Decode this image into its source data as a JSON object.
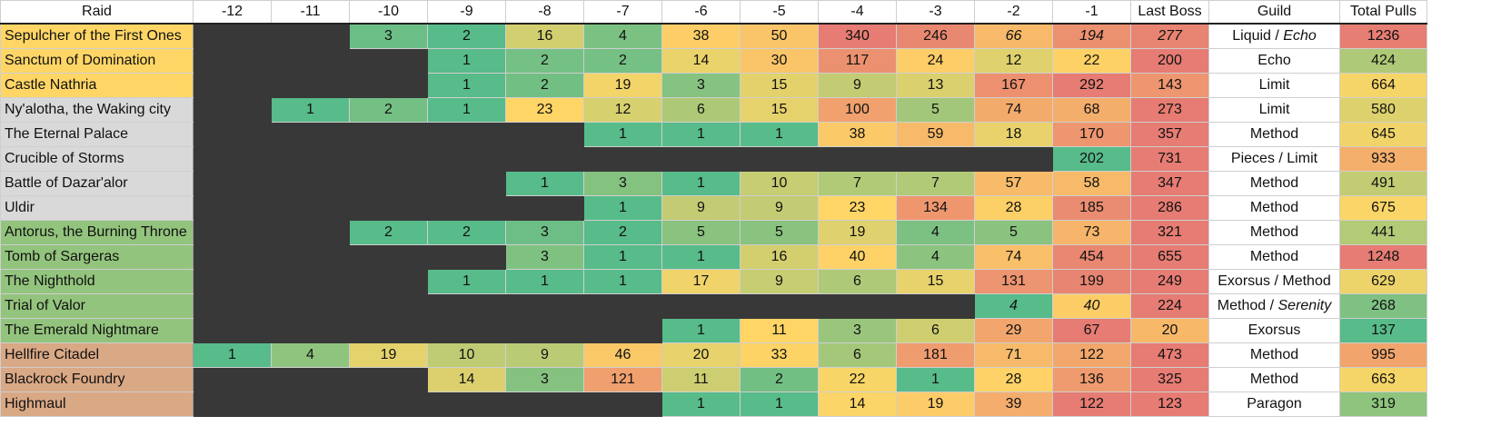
{
  "header": {
    "raid_label": "Raid",
    "columns": [
      "-12",
      "-11",
      "-10",
      "-9",
      "-8",
      "-7",
      "-6",
      "-5",
      "-4",
      "-3",
      "-2",
      "-1",
      "Last Boss"
    ],
    "guild_label": "Guild",
    "total_label": "Total Pulls"
  },
  "colors": {
    "empty": "#383838",
    "scale": [
      "#57bb8a",
      "#ffd666",
      "#e67c73"
    ],
    "raid_groups": {
      "shadowlands": "#ffd666",
      "bfa": "#d9d9d9",
      "legion": "#93c47d",
      "wod": "#d9a885"
    }
  },
  "rows": [
    {
      "name": "Sepulcher of the First Ones",
      "group": "shadowlands",
      "pulls": [
        null,
        null,
        "3",
        "2",
        "16",
        "4",
        "38",
        "50",
        "340",
        "246",
        "66",
        "194",
        "277"
      ],
      "italic": [
        10,
        11,
        12
      ],
      "guild": [
        {
          "t": "Liquid",
          "i": false
        },
        {
          "t": " / ",
          "i": false
        },
        {
          "t": "Echo",
          "i": true
        }
      ],
      "total": "1236"
    },
    {
      "name": "Sanctum of Domination",
      "group": "shadowlands",
      "pulls": [
        null,
        null,
        null,
        "1",
        "2",
        "2",
        "14",
        "30",
        "117",
        "24",
        "12",
        "22",
        "200"
      ],
      "italic": [],
      "guild": [
        {
          "t": "Echo",
          "i": false
        }
      ],
      "total": "424"
    },
    {
      "name": "Castle Nathria",
      "group": "shadowlands",
      "pulls": [
        null,
        null,
        null,
        "1",
        "2",
        "19",
        "3",
        "15",
        "9",
        "13",
        "167",
        "292",
        "143"
      ],
      "italic": [],
      "guild": [
        {
          "t": "Limit",
          "i": false
        }
      ],
      "total": "664"
    },
    {
      "name": "Ny'alotha, the Waking city",
      "group": "bfa",
      "pulls": [
        null,
        "1",
        "2",
        "1",
        "23",
        "12",
        "6",
        "15",
        "100",
        "5",
        "74",
        "68",
        "273"
      ],
      "italic": [],
      "guild": [
        {
          "t": "Limit",
          "i": false
        }
      ],
      "total": "580"
    },
    {
      "name": "The Eternal Palace",
      "group": "bfa",
      "pulls": [
        null,
        null,
        null,
        null,
        null,
        "1",
        "1",
        "1",
        "38",
        "59",
        "18",
        "170",
        "357"
      ],
      "italic": [],
      "guild": [
        {
          "t": "Method",
          "i": false
        }
      ],
      "total": "645"
    },
    {
      "name": "Crucible of Storms",
      "group": "bfa",
      "pulls": [
        null,
        null,
        null,
        null,
        null,
        null,
        null,
        null,
        null,
        null,
        null,
        "202",
        "731"
      ],
      "italic": [],
      "guild": [
        {
          "t": "Pieces / Limit",
          "i": false
        }
      ],
      "total": "933"
    },
    {
      "name": "Battle of Dazar'alor",
      "group": "bfa",
      "pulls": [
        null,
        null,
        null,
        null,
        "1",
        "3",
        "1",
        "10",
        "7",
        "7",
        "57",
        "58",
        "347"
      ],
      "italic": [],
      "guild": [
        {
          "t": "Method",
          "i": false
        }
      ],
      "total": "491"
    },
    {
      "name": "Uldir",
      "group": "bfa",
      "pulls": [
        null,
        null,
        null,
        null,
        null,
        "1",
        "9",
        "9",
        "23",
        "134",
        "28",
        "185",
        "286"
      ],
      "italic": [],
      "guild": [
        {
          "t": "Method",
          "i": false
        }
      ],
      "total": "675"
    },
    {
      "name": "Antorus, the Burning Throne",
      "group": "legion",
      "pulls": [
        null,
        null,
        "2",
        "2",
        "3",
        "2",
        "5",
        "5",
        "19",
        "4",
        "5",
        "73",
        "321"
      ],
      "italic": [],
      "guild": [
        {
          "t": "Method",
          "i": false
        }
      ],
      "total": "441"
    },
    {
      "name": "Tomb of Sargeras",
      "group": "legion",
      "pulls": [
        null,
        null,
        null,
        null,
        "3",
        "1",
        "1",
        "16",
        "40",
        "4",
        "74",
        "454",
        "655"
      ],
      "italic": [],
      "guild": [
        {
          "t": "Method",
          "i": false
        }
      ],
      "total": "1248"
    },
    {
      "name": "The Nighthold",
      "group": "legion",
      "pulls": [
        null,
        null,
        null,
        "1",
        "1",
        "1",
        "17",
        "9",
        "6",
        "15",
        "131",
        "199",
        "249"
      ],
      "italic": [],
      "guild": [
        {
          "t": "Exorsus / Method",
          "i": false
        }
      ],
      "total": "629"
    },
    {
      "name": "Trial of Valor",
      "group": "legion",
      "pulls": [
        null,
        null,
        null,
        null,
        null,
        null,
        null,
        null,
        null,
        null,
        "4",
        "40",
        "224"
      ],
      "italic": [
        10,
        11
      ],
      "guild": [
        {
          "t": "Method / ",
          "i": false
        },
        {
          "t": "Serenity",
          "i": true
        }
      ],
      "total": "268"
    },
    {
      "name": "The Emerald Nightmare",
      "group": "legion",
      "pulls": [
        null,
        null,
        null,
        null,
        null,
        null,
        "1",
        "11",
        "3",
        "6",
        "29",
        "67",
        "20"
      ],
      "italic": [],
      "guild": [
        {
          "t": "Exorsus",
          "i": false
        }
      ],
      "total": "137"
    },
    {
      "name": "Hellfire Citadel",
      "group": "wod",
      "pulls": [
        "1",
        "4",
        "19",
        "10",
        "9",
        "46",
        "20",
        "33",
        "6",
        "181",
        "71",
        "122",
        "473"
      ],
      "italic": [],
      "guild": [
        {
          "t": "Method",
          "i": false
        }
      ],
      "total": "995"
    },
    {
      "name": "Blackrock Foundry",
      "group": "wod",
      "pulls": [
        null,
        null,
        null,
        "14",
        "3",
        "121",
        "11",
        "2",
        "22",
        "1",
        "28",
        "136",
        "325"
      ],
      "italic": [],
      "guild": [
        {
          "t": "Method",
          "i": false
        }
      ],
      "total": "663"
    },
    {
      "name": "Highmaul",
      "group": "wod",
      "pulls": [
        null,
        null,
        null,
        null,
        null,
        null,
        "1",
        "1",
        "14",
        "19",
        "39",
        "122",
        "123"
      ],
      "italic": [],
      "guild": [
        {
          "t": "Paragon",
          "i": false
        }
      ],
      "total": "319"
    }
  ],
  "chart_data": {
    "type": "table",
    "columns": [
      "Raid",
      "-12",
      "-11",
      "-10",
      "-9",
      "-8",
      "-7",
      "-6",
      "-5",
      "-4",
      "-3",
      "-2",
      "-1",
      "Last Boss",
      "Guild",
      "Total Pulls"
    ],
    "rows": [
      [
        "Sepulcher of the First Ones",
        null,
        null,
        3,
        2,
        16,
        4,
        38,
        50,
        340,
        246,
        66,
        194,
        277,
        "Liquid / Echo",
        1236
      ],
      [
        "Sanctum of Domination",
        null,
        null,
        null,
        1,
        2,
        2,
        14,
        30,
        117,
        24,
        12,
        22,
        200,
        "Echo",
        424
      ],
      [
        "Castle Nathria",
        null,
        null,
        null,
        1,
        2,
        19,
        3,
        15,
        9,
        13,
        167,
        292,
        143,
        "Limit",
        664
      ],
      [
        "Ny'alotha, the Waking city",
        null,
        1,
        2,
        1,
        23,
        12,
        6,
        15,
        100,
        5,
        74,
        68,
        273,
        "Limit",
        580
      ],
      [
        "The Eternal Palace",
        null,
        null,
        null,
        null,
        null,
        1,
        1,
        1,
        38,
        59,
        18,
        170,
        357,
        "Method",
        645
      ],
      [
        "Crucible of Storms",
        null,
        null,
        null,
        null,
        null,
        null,
        null,
        null,
        null,
        null,
        null,
        202,
        731,
        "Pieces / Limit",
        933
      ],
      [
        "Battle of Dazar'alor",
        null,
        null,
        null,
        null,
        1,
        3,
        1,
        10,
        7,
        7,
        57,
        58,
        347,
        "Method",
        491
      ],
      [
        "Uldir",
        null,
        null,
        null,
        null,
        null,
        1,
        9,
        9,
        23,
        134,
        28,
        185,
        286,
        "Method",
        675
      ],
      [
        "Antorus, the Burning Throne",
        null,
        null,
        2,
        2,
        3,
        2,
        5,
        5,
        19,
        4,
        5,
        73,
        321,
        "Method",
        441
      ],
      [
        "Tomb of Sargeras",
        null,
        null,
        null,
        null,
        3,
        1,
        1,
        16,
        40,
        4,
        74,
        454,
        655,
        "Method",
        1248
      ],
      [
        "The Nighthold",
        null,
        null,
        null,
        1,
        1,
        1,
        17,
        9,
        6,
        15,
        131,
        199,
        249,
        "Exorsus / Method",
        629
      ],
      [
        "Trial of Valor",
        null,
        null,
        null,
        null,
        null,
        null,
        null,
        null,
        null,
        null,
        4,
        40,
        224,
        "Method / Serenity",
        268
      ],
      [
        "The Emerald Nightmare",
        null,
        null,
        null,
        null,
        null,
        null,
        1,
        11,
        3,
        6,
        29,
        67,
        20,
        "Exorsus",
        137
      ],
      [
        "Hellfire Citadel",
        1,
        4,
        19,
        10,
        9,
        46,
        20,
        33,
        6,
        181,
        71,
        122,
        473,
        "Method",
        995
      ],
      [
        "Blackrock Foundry",
        null,
        null,
        null,
        14,
        3,
        121,
        11,
        2,
        22,
        1,
        28,
        136,
        325,
        "Method",
        663
      ],
      [
        "Highmaul",
        null,
        null,
        null,
        null,
        null,
        null,
        1,
        1,
        14,
        19,
        39,
        122,
        123,
        "Paragon",
        319
      ]
    ]
  }
}
